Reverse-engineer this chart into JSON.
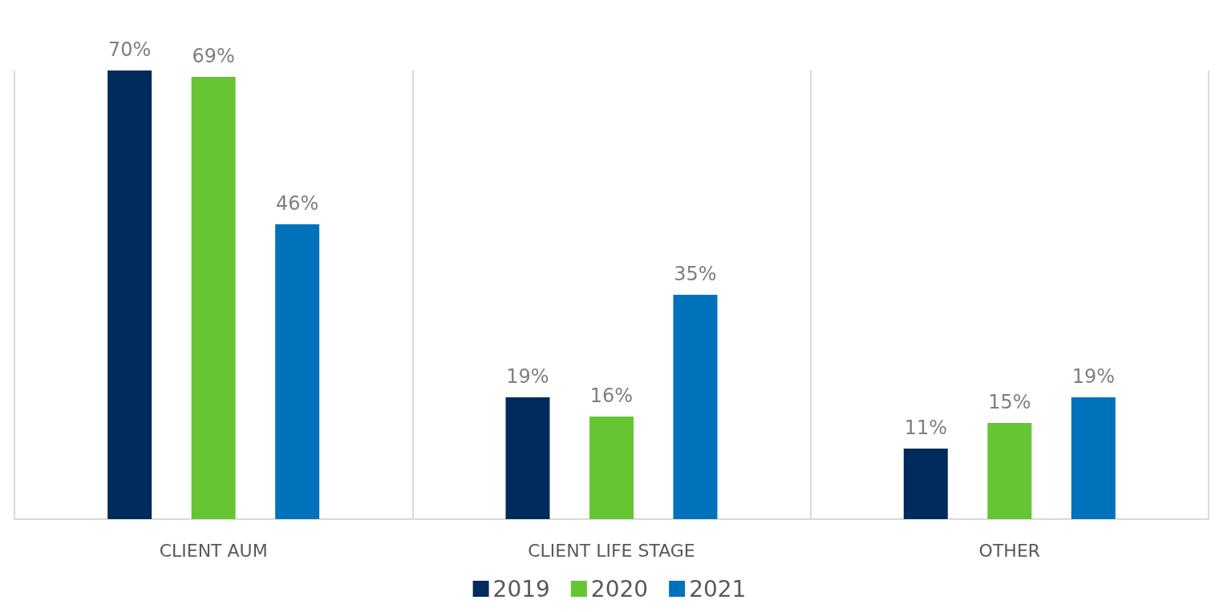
{
  "chart_data": {
    "type": "bar",
    "categories": [
      "CLIENT AUM",
      "CLIENT LIFE STAGE",
      "OTHER"
    ],
    "series": [
      {
        "name": "2019",
        "color": "#002b5c",
        "values": [
          70,
          19,
          11
        ],
        "value_labels": [
          "70%",
          "19%",
          "11%"
        ]
      },
      {
        "name": "2020",
        "color": "#66c533",
        "values": [
          69,
          16,
          15
        ],
        "value_labels": [
          "69%",
          "16%",
          "15%"
        ]
      },
      {
        "name": "2021",
        "color": "#0072bb",
        "values": [
          46,
          35,
          19
        ],
        "value_labels": [
          "46%",
          "35%",
          "19%"
        ]
      }
    ],
    "grid": "x",
    "legend": "bottom"
  }
}
